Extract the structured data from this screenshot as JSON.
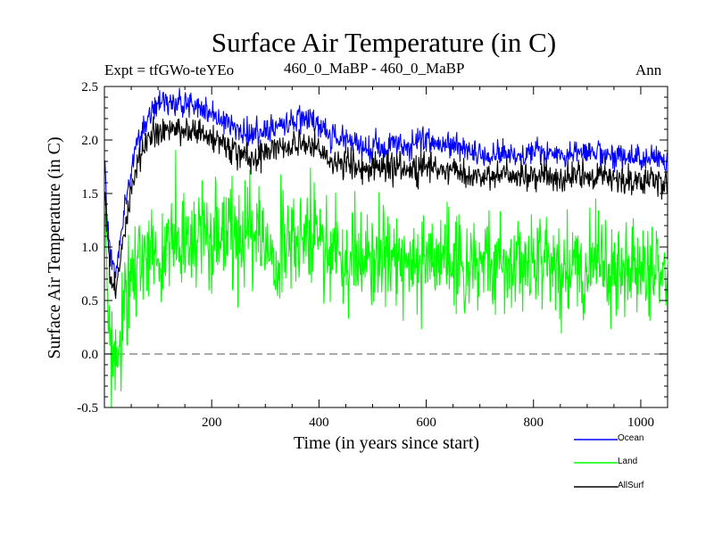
{
  "chart_data": {
    "type": "line",
    "title": "Surface Air Temperature (in C)",
    "subtitle": "460_0_MaBP - 460_0_MaBP",
    "experiment": "Expt = tfGWo-teYEo",
    "period": "Ann",
    "xlabel": "Time (in years since start)",
    "ylabel": "Surface Air Temperature (in C)",
    "xlim": [
      0,
      1050
    ],
    "ylim": [
      -0.5,
      2.5
    ],
    "x_ticks": [
      200,
      400,
      600,
      800,
      1000
    ],
    "x_tick_labels": [
      "200",
      "400",
      "600",
      "800",
      "1000"
    ],
    "y_ticks": [
      -0.5,
      0.0,
      0.5,
      1.0,
      1.5,
      2.0,
      2.5
    ],
    "y_tick_labels": [
      "-0.5",
      "0.0",
      "0.5",
      "1.0",
      "1.5",
      "2.0",
      "2.5"
    ],
    "reference_line": {
      "y": 0.0,
      "style": "dashed",
      "color": "#777777"
    },
    "legend_position": "bottom-right, outside plot",
    "series": [
      {
        "name": "Ocean",
        "color": "#0000ff",
        "x": [
          1,
          5,
          10,
          15,
          20,
          25,
          30,
          40,
          50,
          60,
          70,
          80,
          90,
          100,
          120,
          140,
          160,
          180,
          200,
          220,
          240,
          260,
          280,
          300,
          320,
          340,
          360,
          380,
          400,
          420,
          440,
          460,
          480,
          500,
          520,
          540,
          560,
          580,
          600,
          620,
          640,
          660,
          680,
          700,
          720,
          740,
          760,
          780,
          800,
          820,
          840,
          860,
          880,
          900,
          920,
          940,
          960,
          980,
          1000,
          1020,
          1040,
          1050
        ],
        "values": [
          1.8,
          1.3,
          0.95,
          0.8,
          0.75,
          0.85,
          1.05,
          1.4,
          1.7,
          1.95,
          2.1,
          2.2,
          2.28,
          2.32,
          2.34,
          2.35,
          2.33,
          2.3,
          2.25,
          2.18,
          2.12,
          2.07,
          2.05,
          2.08,
          2.12,
          2.15,
          2.18,
          2.2,
          2.15,
          2.05,
          2.0,
          1.98,
          1.95,
          1.96,
          1.94,
          1.95,
          1.93,
          1.95,
          2.02,
          1.95,
          1.94,
          1.93,
          1.9,
          1.85,
          1.86,
          1.88,
          1.87,
          1.86,
          1.9,
          1.88,
          1.87,
          1.88,
          1.9,
          1.89,
          1.88,
          1.86,
          1.85,
          1.84,
          1.83,
          1.84,
          1.82,
          1.8
        ]
      },
      {
        "name": "Land",
        "color": "#00ff00",
        "x": [
          1,
          5,
          10,
          15,
          20,
          25,
          30,
          35,
          40,
          50,
          60,
          70,
          80,
          90,
          100,
          120,
          140,
          160,
          180,
          200,
          220,
          240,
          260,
          280,
          300,
          320,
          340,
          360,
          380,
          400,
          420,
          440,
          460,
          480,
          500,
          520,
          540,
          560,
          580,
          600,
          620,
          640,
          660,
          680,
          700,
          720,
          740,
          760,
          780,
          800,
          820,
          840,
          860,
          880,
          900,
          920,
          940,
          960,
          980,
          1000,
          1020,
          1040,
          1050
        ],
        "values": [
          1.1,
          0.6,
          0.2,
          -0.05,
          -0.15,
          -0.1,
          0.05,
          0.25,
          0.45,
          0.7,
          0.85,
          0.9,
          0.95,
          0.98,
          1.0,
          1.05,
          1.08,
          1.1,
          1.12,
          1.15,
          1.1,
          1.05,
          1.02,
          1.08,
          1.05,
          1.0,
          1.02,
          1.05,
          1.1,
          1.05,
          0.95,
          0.9,
          0.88,
          0.92,
          0.95,
          0.9,
          0.92,
          0.88,
          0.85,
          0.9,
          0.92,
          0.88,
          0.85,
          0.82,
          0.8,
          0.85,
          0.84,
          0.83,
          0.85,
          0.82,
          0.8,
          0.78,
          0.8,
          0.78,
          0.82,
          0.8,
          0.78,
          0.76,
          0.78,
          0.75,
          0.8,
          0.78,
          0.75
        ]
      },
      {
        "name": "AllSurf",
        "color": "#000000",
        "x": [
          1,
          5,
          10,
          15,
          20,
          25,
          30,
          40,
          50,
          60,
          70,
          80,
          90,
          100,
          120,
          140,
          160,
          180,
          200,
          220,
          240,
          260,
          280,
          300,
          320,
          340,
          360,
          380,
          400,
          420,
          440,
          460,
          480,
          500,
          520,
          540,
          560,
          580,
          600,
          620,
          640,
          660,
          680,
          700,
          720,
          740,
          760,
          780,
          800,
          820,
          840,
          860,
          880,
          900,
          920,
          940,
          960,
          980,
          1000,
          1020,
          1040,
          1050
        ],
        "values": [
          1.55,
          1.1,
          0.8,
          0.65,
          0.62,
          0.72,
          0.9,
          1.2,
          1.5,
          1.75,
          1.9,
          1.98,
          2.05,
          2.08,
          2.1,
          2.1,
          2.08,
          2.05,
          2.02,
          1.95,
          1.9,
          1.86,
          1.84,
          1.87,
          1.9,
          1.92,
          1.95,
          1.97,
          1.92,
          1.83,
          1.78,
          1.76,
          1.74,
          1.75,
          1.73,
          1.74,
          1.72,
          1.73,
          1.78,
          1.73,
          1.72,
          1.71,
          1.68,
          1.64,
          1.65,
          1.66,
          1.66,
          1.65,
          1.68,
          1.66,
          1.65,
          1.66,
          1.68,
          1.67,
          1.66,
          1.64,
          1.63,
          1.62,
          1.61,
          1.62,
          1.6,
          1.58
        ]
      }
    ]
  }
}
